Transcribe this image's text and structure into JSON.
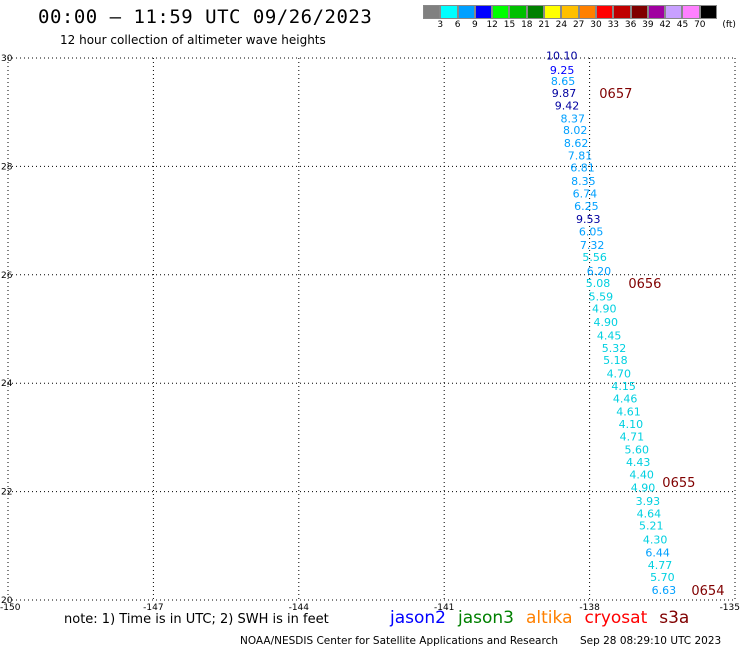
{
  "header": {
    "title": "00:00 – 11:59 UTC 09/26/2023",
    "subtitle": "12 hour collection of altimeter wave heights"
  },
  "colorbar": {
    "colors": [
      "#808080",
      "#00ffff",
      "#00a0ff",
      "#0000ff",
      "#00ff00",
      "#00c000",
      "#008000",
      "#ffff00",
      "#ffc000",
      "#ff8000",
      "#ff0000",
      "#c00000",
      "#800000",
      "#a000a0",
      "#c8a0ff",
      "#ff80ff",
      "#000000"
    ],
    "labels": [
      "3",
      "6",
      "9",
      "12",
      "15",
      "18",
      "21",
      "24",
      "27",
      "30",
      "33",
      "36",
      "39",
      "42",
      "45",
      "70"
    ],
    "unit": "(ft)"
  },
  "footer": {
    "note": "note: 1) Time is in UTC; 2) SWH is in feet",
    "satellites": [
      {
        "name": "jason2",
        "color": "#0000ff"
      },
      {
        "name": "jason3",
        "color": "#008000"
      },
      {
        "name": "altika",
        "color": "#ff8000"
      },
      {
        "name": "cryosat",
        "color": "#ff0000"
      },
      {
        "name": "s3a",
        "color": "#800000"
      }
    ],
    "credit": "NOAA/NESDIS Center for Satellite Applications and Research",
    "timestamp": "Sep 28 08:29:10 UTC 2023"
  },
  "chart_data": {
    "type": "scatter",
    "title": "00:00 – 11:59 UTC 09/26/2023",
    "subtitle": "12 hour collection of altimeter wave heights",
    "xlim": [
      -150,
      -135
    ],
    "ylim": [
      20,
      30
    ],
    "x_ticks": [
      "-150",
      "-147",
      "-144",
      "-141",
      "-138",
      "-135"
    ],
    "x_tick_values": [
      -150,
      -147,
      -144,
      -141,
      -138,
      -135
    ],
    "y_ticks": [
      "20",
      "22",
      "24",
      "26",
      "28",
      "30"
    ],
    "y_tick_values": [
      20,
      22,
      24,
      26,
      28,
      30
    ],
    "grid": true,
    "value_unit": "ft",
    "points": [
      {
        "lon": -138.9,
        "lat": 30.05,
        "swh": "10.10",
        "color": "#0000a0"
      },
      {
        "lon": -138.82,
        "lat": 29.78,
        "swh": "9.25",
        "color": "#0000ff"
      },
      {
        "lon": -138.8,
        "lat": 29.58,
        "swh": "8.65",
        "color": "#00a0ff"
      },
      {
        "lon": -138.78,
        "lat": 29.35,
        "swh": "9.87",
        "color": "#0000a0"
      },
      {
        "lon": -138.72,
        "lat": 29.12,
        "swh": "9.42",
        "color": "#0000a0"
      },
      {
        "lon": -138.6,
        "lat": 28.88,
        "swh": "8.37",
        "color": "#00a0ff"
      },
      {
        "lon": -138.55,
        "lat": 28.67,
        "swh": "8.02",
        "color": "#00a0ff"
      },
      {
        "lon": -138.53,
        "lat": 28.43,
        "swh": "8.62",
        "color": "#00a0ff"
      },
      {
        "lon": -138.45,
        "lat": 28.2,
        "swh": "7.81",
        "color": "#00a0ff"
      },
      {
        "lon": -138.4,
        "lat": 27.98,
        "swh": "6.81",
        "color": "#00a0ff"
      },
      {
        "lon": -138.38,
        "lat": 27.73,
        "swh": "8.35",
        "color": "#00a0ff"
      },
      {
        "lon": -138.35,
        "lat": 27.5,
        "swh": "6.74",
        "color": "#00a0ff"
      },
      {
        "lon": -138.32,
        "lat": 27.27,
        "swh": "6.25",
        "color": "#00a0ff"
      },
      {
        "lon": -138.28,
        "lat": 27.03,
        "swh": "9.53",
        "color": "#0000a0"
      },
      {
        "lon": -138.22,
        "lat": 26.8,
        "swh": "6.05",
        "color": "#00a0ff"
      },
      {
        "lon": -138.2,
        "lat": 26.55,
        "swh": "7.32",
        "color": "#00a0ff"
      },
      {
        "lon": -138.15,
        "lat": 26.33,
        "swh": "5.56",
        "color": "#00d0e0"
      },
      {
        "lon": -138.06,
        "lat": 26.07,
        "swh": "6.20",
        "color": "#00a0ff"
      },
      {
        "lon": -138.08,
        "lat": 25.85,
        "swh": "5.08",
        "color": "#00d0e0"
      },
      {
        "lon": -138.02,
        "lat": 25.6,
        "swh": "5.59",
        "color": "#00d0e0"
      },
      {
        "lon": -137.95,
        "lat": 25.38,
        "swh": "4.90",
        "color": "#00d0e0"
      },
      {
        "lon": -137.92,
        "lat": 25.13,
        "swh": "4.90",
        "color": "#00d0e0"
      },
      {
        "lon": -137.85,
        "lat": 24.88,
        "swh": "4.45",
        "color": "#00d0e0"
      },
      {
        "lon": -137.75,
        "lat": 24.65,
        "swh": "5.32",
        "color": "#00d0e0"
      },
      {
        "lon": -137.72,
        "lat": 24.43,
        "swh": "5.18",
        "color": "#00d0e0"
      },
      {
        "lon": -137.65,
        "lat": 24.18,
        "swh": "4.70",
        "color": "#00d0e0"
      },
      {
        "lon": -137.55,
        "lat": 23.95,
        "swh": "4.15",
        "color": "#00d0e0"
      },
      {
        "lon": -137.52,
        "lat": 23.72,
        "swh": "4.46",
        "color": "#00d0e0"
      },
      {
        "lon": -137.45,
        "lat": 23.48,
        "swh": "4.61",
        "color": "#00d0e0"
      },
      {
        "lon": -137.4,
        "lat": 23.25,
        "swh": "4.10",
        "color": "#00d0e0"
      },
      {
        "lon": -137.38,
        "lat": 23.02,
        "swh": "4.71",
        "color": "#00d0e0"
      },
      {
        "lon": -137.28,
        "lat": 22.78,
        "swh": "5.60",
        "color": "#00d0e0"
      },
      {
        "lon": -137.25,
        "lat": 22.55,
        "swh": "4.43",
        "color": "#00d0e0"
      },
      {
        "lon": -137.18,
        "lat": 22.32,
        "swh": "4.40",
        "color": "#00d0e0"
      },
      {
        "lon": -137.15,
        "lat": 22.08,
        "swh": "4.90",
        "color": "#00d0e0"
      },
      {
        "lon": -137.05,
        "lat": 21.83,
        "swh": "3.93",
        "color": "#00d0e0"
      },
      {
        "lon": -137.03,
        "lat": 21.6,
        "swh": "4.64",
        "color": "#00d0e0"
      },
      {
        "lon": -136.98,
        "lat": 21.37,
        "swh": "5.21",
        "color": "#00d0e0"
      },
      {
        "lon": -136.9,
        "lat": 21.12,
        "swh": "4.30",
        "color": "#00d0e0"
      },
      {
        "lon": -136.85,
        "lat": 20.88,
        "swh": "6.44",
        "color": "#00a0ff"
      },
      {
        "lon": -136.8,
        "lat": 20.65,
        "swh": "4.77",
        "color": "#00d0e0"
      },
      {
        "lon": -136.75,
        "lat": 20.42,
        "swh": "5.70",
        "color": "#00d0e0"
      },
      {
        "lon": -136.72,
        "lat": 20.18,
        "swh": "6.63",
        "color": "#00a0ff"
      }
    ],
    "pass_times": [
      {
        "lon": -137.8,
        "lat": 29.35,
        "label": "0657",
        "color": "#800000"
      },
      {
        "lon": -137.2,
        "lat": 25.85,
        "label": "0656",
        "color": "#800000"
      },
      {
        "lon": -136.5,
        "lat": 22.18,
        "label": "0655",
        "color": "#800000"
      },
      {
        "lon": -135.9,
        "lat": 20.18,
        "label": "0654",
        "color": "#800000"
      }
    ]
  }
}
